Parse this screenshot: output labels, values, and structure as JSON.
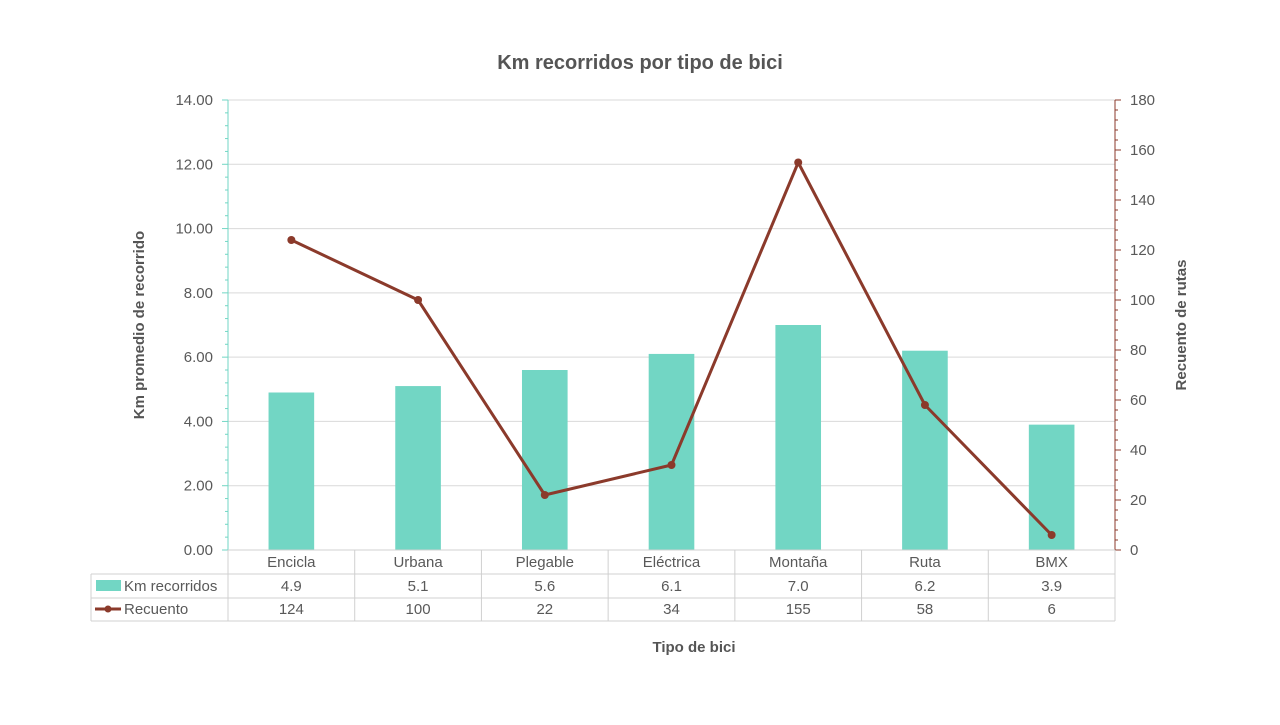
{
  "chart_data": {
    "type": "bar",
    "title": "Km recorridos por tipo de bici",
    "xlabel": "Tipo de bici",
    "ylabel": "Km promedio de recorrido",
    "y2label": "Recuento de rutas",
    "categories": [
      "Encicla",
      "Urbana",
      "Plegable",
      "Eléctrica",
      "Montaña",
      "Ruta",
      "BMX"
    ],
    "series": [
      {
        "name": "Km recorridos",
        "type": "bar",
        "axis": "left",
        "color": "#72d6c4",
        "values": [
          4.9,
          5.1,
          5.6,
          6.1,
          7.0,
          6.2,
          3.9
        ],
        "labels": [
          "4.9",
          "5.1",
          "5.6",
          "6.1",
          "7.0",
          "6.2",
          "3.9"
        ]
      },
      {
        "name": "Recuento",
        "type": "line",
        "axis": "right",
        "color": "#8b3a2b",
        "values": [
          124,
          100,
          22,
          34,
          155,
          58,
          6
        ],
        "labels": [
          "124",
          "100",
          "22",
          "34",
          "155",
          "58",
          "6"
        ]
      }
    ],
    "ylim": [
      0,
      14
    ],
    "y_ticks": [
      "0.00",
      "2.00",
      "4.00",
      "6.00",
      "8.00",
      "10.00",
      "12.00",
      "14.00"
    ],
    "y2lim": [
      0,
      180
    ],
    "y2_ticks": [
      "0",
      "20",
      "40",
      "60",
      "80",
      "100",
      "120",
      "140",
      "160",
      "180"
    ],
    "grid": true,
    "legend": "data-table",
    "left_axis_color": "#72d6c4",
    "right_axis_color": "#8b3a2b"
  }
}
